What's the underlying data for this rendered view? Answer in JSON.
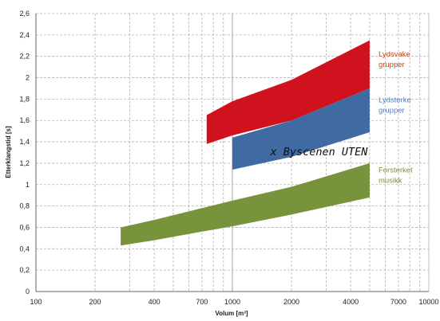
{
  "chart_data": {
    "type": "area",
    "x_scale": "log",
    "xlim": [
      100,
      10000
    ],
    "ylim": [
      0,
      2.6
    ],
    "xlabel": "Volum [m³]",
    "ylabel": "Etterklangstid [s]",
    "x_ticks": [
      {
        "value": 100,
        "label": "100"
      },
      {
        "value": 200,
        "label": "200"
      },
      {
        "value": 400,
        "label": "400"
      },
      {
        "value": 700,
        "label": "700"
      },
      {
        "value": 1000,
        "label": "1000"
      },
      {
        "value": 2000,
        "label": "2000"
      },
      {
        "value": 4000,
        "label": "4000"
      },
      {
        "value": 7000,
        "label": "7000"
      },
      {
        "value": 10000,
        "label": "10000"
      }
    ],
    "x_grid": [
      200,
      300,
      400,
      500,
      600,
      700,
      800,
      900,
      1000,
      2000,
      3000,
      4000,
      5000,
      6000,
      7000,
      8000,
      9000
    ],
    "y_ticks": [
      {
        "value": 0,
        "label": "0"
      },
      {
        "value": 0.2,
        "label": "0,2"
      },
      {
        "value": 0.4,
        "label": "0,4"
      },
      {
        "value": 0.6,
        "label": "0,6"
      },
      {
        "value": 0.8,
        "label": "0,8"
      },
      {
        "value": 1.0,
        "label": "1"
      },
      {
        "value": 1.2,
        "label": "1,2"
      },
      {
        "value": 1.4,
        "label": "1,4"
      },
      {
        "value": 1.6,
        "label": "1,6"
      },
      {
        "value": 1.8,
        "label": "1,8"
      },
      {
        "value": 2.0,
        "label": "2"
      },
      {
        "value": 2.2,
        "label": "2,2"
      },
      {
        "value": 2.4,
        "label": "2,4"
      },
      {
        "value": 2.6,
        "label": "2,6"
      }
    ],
    "grid": true,
    "series": [
      {
        "name": "Lydsvake grupper",
        "label_lines": [
          "Lydsvake",
          "grupper"
        ],
        "color": "#d0121f",
        "label_color": "#c8471c",
        "x": [
          740,
          1000,
          2000,
          5000
        ],
        "upper": [
          1.65,
          1.78,
          1.98,
          2.35
        ],
        "lower": [
          1.38,
          1.46,
          1.6,
          1.9
        ]
      },
      {
        "name": "Lydsterke grupper",
        "label_lines": [
          "Lydsterke",
          "grupper"
        ],
        "color": "#3f6aa2",
        "label_color": "#4f7fbe",
        "x": [
          1000,
          2000,
          5000
        ],
        "upper": [
          1.44,
          1.6,
          1.9
        ],
        "lower": [
          1.14,
          1.26,
          1.49
        ]
      },
      {
        "name": "Forsterket musikk",
        "label_lines": [
          "Forsterket",
          "musikk"
        ],
        "color": "#77933c",
        "label_color": "#77933c",
        "x": [
          270,
          400,
          700,
          1000,
          2000,
          5000
        ],
        "upper": [
          0.6,
          0.67,
          0.78,
          0.85,
          0.98,
          1.2
        ],
        "lower": [
          0.43,
          0.48,
          0.56,
          0.61,
          0.72,
          0.88
        ]
      }
    ],
    "annotations": [
      {
        "text": "x Byscenen UTEN",
        "x": 1560,
        "y": 1.31
      }
    ]
  }
}
